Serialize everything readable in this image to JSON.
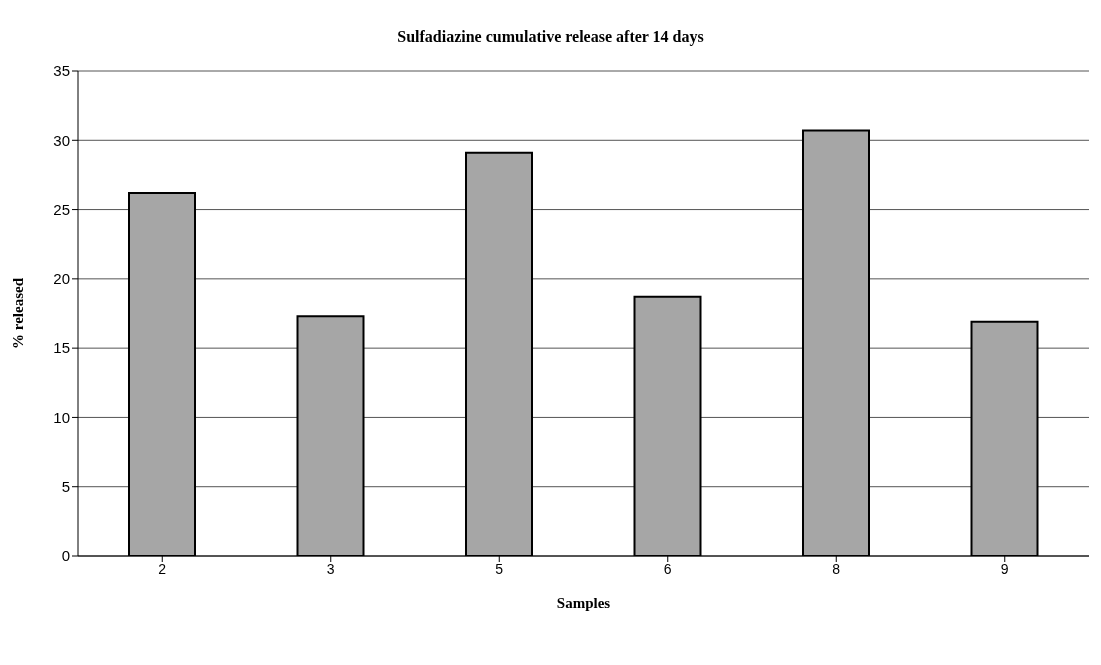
{
  "chart_data": {
    "type": "bar",
    "title": "Sulfadiazine cumulative release after 14 days",
    "xlabel": "Samples",
    "ylabel": "% released",
    "categories": [
      "2",
      "3",
      "5",
      "6",
      "8",
      "9"
    ],
    "values": [
      26.2,
      17.3,
      29.1,
      18.7,
      30.7,
      16.9
    ],
    "color": "#a6a6a6",
    "ylim": [
      0,
      35
    ],
    "yticks": [
      0,
      5,
      10,
      15,
      20,
      25,
      30,
      35
    ],
    "grid": "y"
  }
}
